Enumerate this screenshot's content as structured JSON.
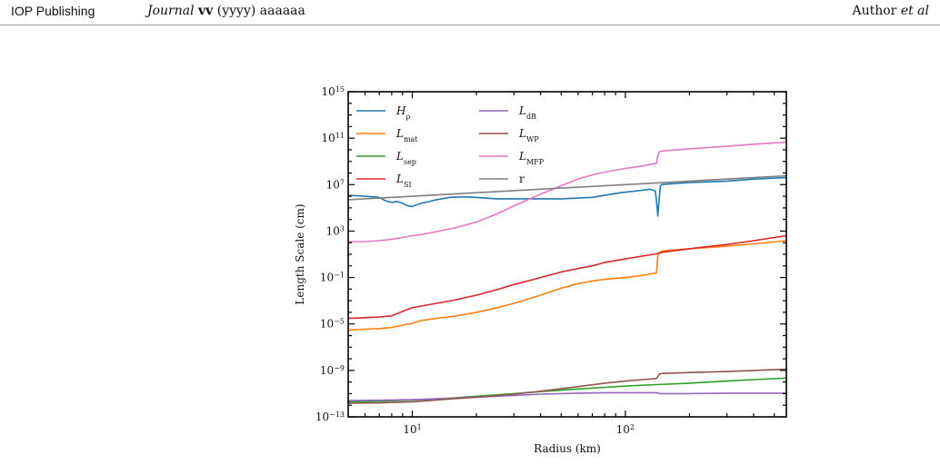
{
  "header": {
    "publisher": "IOP Publishing",
    "journal_name": "Journal",
    "journal_volume": "vv",
    "journal_year_pages": "(yyyy) aaaaaa",
    "author": "Author",
    "author_etal": "et al"
  },
  "chart_data": {
    "type": "line",
    "xlabel": "Radius (km)",
    "ylabel": "Length Scale (cm)",
    "xscale": "log",
    "yscale": "log",
    "xlim": [
      5,
      570
    ],
    "ylim": [
      1e-13,
      1000000000000000.0
    ],
    "x_ticks": [
      {
        "value": 10,
        "base": "10",
        "exp": "1"
      },
      {
        "value": 100,
        "base": "10",
        "exp": "2"
      }
    ],
    "y_ticks": [
      {
        "value": 1e-13,
        "base": "10",
        "exp": "−13"
      },
      {
        "value": 1e-09,
        "base": "10",
        "exp": "−9"
      },
      {
        "value": 1e-05,
        "base": "10",
        "exp": "−5"
      },
      {
        "value": 0.1,
        "base": "10",
        "exp": "−1"
      },
      {
        "value": 1000,
        "base": "10",
        "exp": "3"
      },
      {
        "value": 10000000.0,
        "base": "10",
        "exp": "7"
      },
      {
        "value": 100000000000.0,
        "base": "10",
        "exp": "11"
      },
      {
        "value": 1000000000000000.0,
        "base": "10",
        "exp": "15"
      }
    ],
    "legend_position": "top-left",
    "legend_columns": 2,
    "grid": false,
    "series": [
      {
        "name": "H",
        "sub": "ρ",
        "italic": true,
        "color": "#1f77b4",
        "x": [
          5,
          6,
          7,
          7.5,
          8,
          8.5,
          9,
          9.5,
          10,
          11,
          12,
          13,
          15,
          18,
          25,
          35,
          50,
          70,
          80,
          95,
          115,
          130,
          138,
          140,
          142,
          144,
          146,
          148,
          155,
          200,
          300,
          400,
          570
        ],
        "y": [
          1200000.0,
          1000000.0,
          800000.0,
          400000.0,
          300000.0,
          350000.0,
          250000.0,
          150000.0,
          130000.0,
          250000.0,
          350000.0,
          500000.0,
          800000.0,
          900000.0,
          600000.0,
          600000.0,
          600000.0,
          800000.0,
          1200000.0,
          2000000.0,
          3000000.0,
          4000000.0,
          3000000.0,
          500000.0,
          20000.0,
          500000.0,
          8000000.0,
          10000000.0,
          11000000.0,
          15000000.0,
          20000000.0,
          30000000.0,
          40000000.0
        ]
      },
      {
        "name": "L",
        "sub": "mat",
        "italic": true,
        "color": "#ff7f0e",
        "x": [
          5,
          6,
          7,
          8,
          9,
          10,
          11,
          13,
          16,
          20,
          25,
          30,
          40,
          50,
          60,
          70,
          80,
          100,
          120,
          140,
          141,
          142,
          145,
          150,
          200,
          300,
          400,
          570
        ],
        "y": [
          3e-06,
          3.5e-06,
          4e-06,
          5e-06,
          8e-06,
          1.1e-05,
          2e-05,
          3e-05,
          5e-05,
          0.0001,
          0.00025,
          0.0006,
          0.003,
          0.012,
          0.03,
          0.05,
          0.07,
          0.1,
          0.15,
          0.25,
          1,
          8,
          15.0,
          20.0,
          30.0,
          50.0,
          80.0,
          150.0
        ]
      },
      {
        "name": "L",
        "sub": "sep",
        "italic": true,
        "color": "#2ca02c",
        "x": [
          5,
          7,
          10,
          15,
          20,
          30,
          40,
          60,
          80,
          100,
          140,
          200,
          300,
          400,
          570
        ],
        "y": [
          2e-12,
          2.2e-12,
          2.8e-12,
          4e-12,
          6e-12,
          1e-11,
          1.5e-11,
          2.5e-11,
          3.5e-11,
          4.5e-11,
          6e-11,
          8e-11,
          1.2e-10,
          1.6e-10,
          2.2e-10
        ]
      },
      {
        "name": "L",
        "sub": "SI",
        "italic": true,
        "color": "#d62728",
        "x": [
          5,
          6,
          7,
          8,
          9,
          10,
          11,
          13,
          16,
          20,
          25,
          30,
          40,
          50,
          60,
          70,
          80,
          100,
          120,
          140,
          150,
          200,
          300,
          400,
          570
        ],
        "y": [
          3e-05,
          3.5e-05,
          4e-05,
          5e-05,
          0.00012,
          0.00025,
          0.00035,
          0.0006,
          0.0012,
          0.003,
          0.009,
          0.025,
          0.1,
          0.3,
          0.6,
          1,
          2,
          4,
          7,
          11.0,
          15.0,
          30.0,
          70.0,
          150.0,
          400.0
        ]
      },
      {
        "name": "L",
        "sub": "dB",
        "italic": true,
        "color": "#9467bd",
        "x": [
          5,
          7,
          10,
          15,
          20,
          30,
          40,
          60,
          80,
          100,
          140,
          145,
          200,
          300,
          400,
          570
        ],
        "y": [
          2.5e-12,
          2.7e-12,
          3e-12,
          4e-12,
          5e-12,
          7e-12,
          9e-12,
          1.1e-11,
          1.2e-11,
          1.2e-11,
          1.2e-11,
          1e-11,
          1e-11,
          1.1e-11,
          1.1e-11,
          1.1e-11
        ]
      },
      {
        "name": "L",
        "sub": "WP",
        "italic": true,
        "color": "#8c564b",
        "x": [
          5,
          7,
          10,
          15,
          20,
          30,
          40,
          60,
          80,
          100,
          120,
          140,
          145,
          150,
          200,
          300,
          400,
          570
        ],
        "y": [
          1.5e-12,
          1.6e-12,
          2e-12,
          3.5e-12,
          5e-12,
          9e-12,
          1.6e-11,
          4e-11,
          8e-11,
          1.2e-10,
          1.6e-10,
          2e-10,
          5e-10,
          5.5e-10,
          6.5e-10,
          8e-10,
          1e-09,
          1.3e-09
        ]
      },
      {
        "name": "L",
        "sub": "MFP",
        "italic": true,
        "color": "#e377c2",
        "x": [
          5,
          6,
          7,
          8,
          9,
          10,
          11,
          13,
          16,
          20,
          25,
          30,
          40,
          50,
          60,
          70,
          80,
          100,
          120,
          140,
          142,
          145,
          150,
          200,
          300,
          400,
          570
        ],
        "y": [
          120,
          125,
          150,
          200,
          280,
          400,
          500,
          900,
          2000,
          6000,
          30000.0,
          150000.0,
          1500000.0,
          8000000.0,
          30000000.0,
          70000000.0,
          120000000.0,
          250000000.0,
          400000000.0,
          700000000.0,
          3000000000.0,
          7000000000.0,
          8000000000.0,
          12000000000.0,
          20000000000.0,
          30000000000.0,
          45000000000.0
        ]
      },
      {
        "name": "r",
        "sub": "",
        "italic": false,
        "color": "#7f7f7f",
        "x": [
          5,
          570
        ],
        "y": [
          500000.0,
          57000000.0
        ]
      }
    ]
  }
}
